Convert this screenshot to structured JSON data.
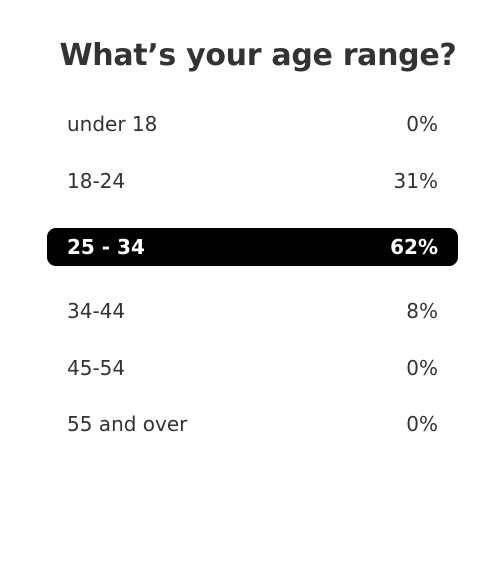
{
  "poll": {
    "question": "What’s your age range?",
    "options": [
      {
        "label": "under 18",
        "percent": "0%",
        "selected": false
      },
      {
        "label": "18-24",
        "percent": "31%",
        "selected": false
      },
      {
        "label": "25 - 34",
        "percent": "62%",
        "selected": true
      },
      {
        "label": "34-44",
        "percent": "8%",
        "selected": false
      },
      {
        "label": "45-54",
        "percent": "0%",
        "selected": false
      },
      {
        "label": "55 and over",
        "percent": "0%",
        "selected": false
      }
    ],
    "colors": {
      "selected_bg": "#000000",
      "selected_text": "#ffffff",
      "text": "#333333"
    }
  }
}
